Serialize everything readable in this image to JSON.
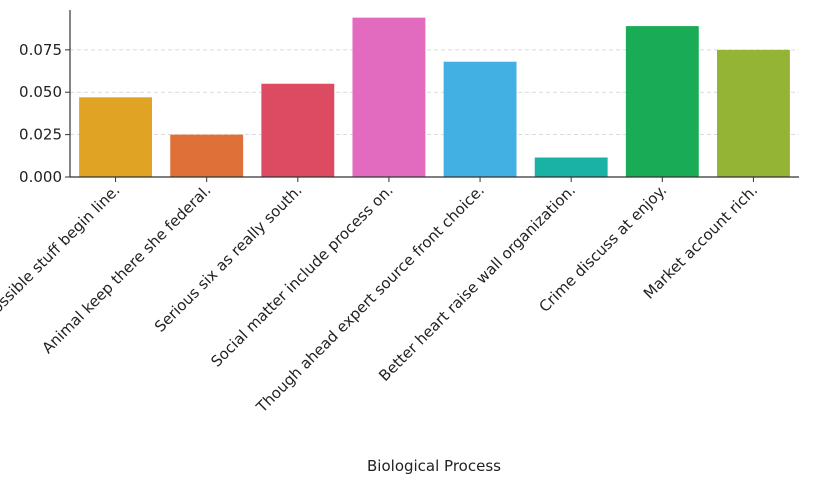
{
  "chart_data": {
    "type": "bar",
    "title": "",
    "xlabel": "Biological Process",
    "ylabel": "",
    "categories": [
      "Possible stuff begin line.",
      "Animal keep there she federal.",
      "Serious six as really south.",
      "Social matter include process on.",
      "Though ahead expert source front choice.",
      "Better heart raise wall organization.",
      "Crime discuss at enjoy.",
      "Market account rich."
    ],
    "values": [
      0.047,
      0.025,
      0.055,
      0.094,
      0.068,
      0.0115,
      0.089,
      0.075
    ],
    "colors": [
      "#e0a324",
      "#df7138",
      "#dd4b63",
      "#e36bbf",
      "#42b0e3",
      "#19b2a5",
      "#1aab56",
      "#93b434"
    ],
    "ylim": [
      0,
      0.0985
    ],
    "yticks": [
      0.0,
      0.025,
      0.05,
      0.075
    ],
    "ytick_labels": [
      "0.000",
      "0.025",
      "0.050",
      "0.075"
    ],
    "grid": "y-dashed",
    "legend": "none"
  }
}
